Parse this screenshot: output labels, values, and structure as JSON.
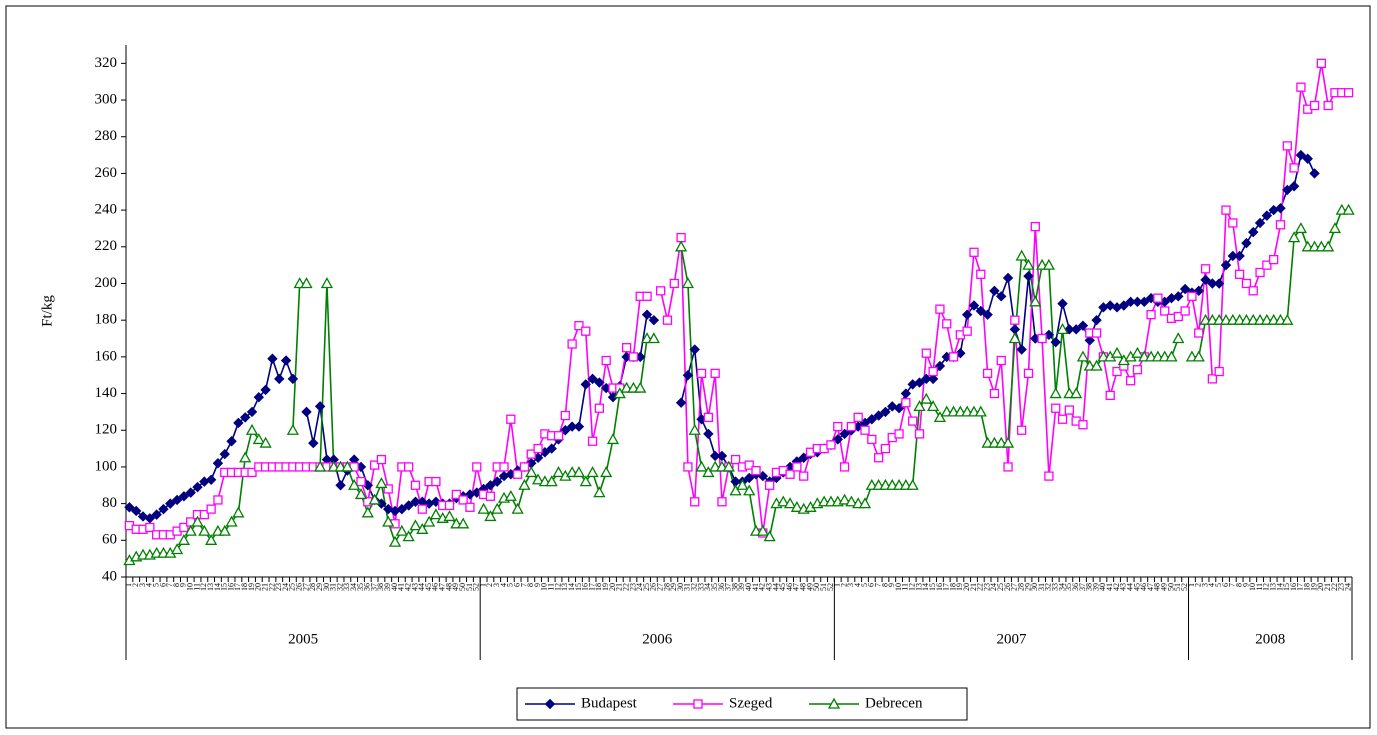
{
  "chart_data": {
    "type": "line",
    "y_label": "Ft/kg",
    "category_groups": [
      {
        "label": "2005",
        "categories": [
          "1",
          "2",
          "3",
          "4",
          "5",
          "6",
          "7",
          "8",
          "9",
          "10",
          "11",
          "12",
          "13",
          "14",
          "15",
          "16",
          "17",
          "18",
          "19",
          "20",
          "21",
          "22",
          "23",
          "24",
          "25",
          "26",
          "27",
          "28",
          "29",
          "30",
          "31",
          "32",
          "33",
          "34",
          "35",
          "36",
          "37",
          "38",
          "39",
          "40",
          "41",
          "42",
          "43",
          "44",
          "45",
          "46",
          "47",
          "48",
          "49",
          "50",
          "51",
          "52"
        ]
      },
      {
        "label": "2006",
        "categories": [
          "1",
          "2",
          "3",
          "4",
          "5",
          "6",
          "7",
          "8",
          "9",
          "10",
          "11",
          "12",
          "13",
          "14",
          "15",
          "16",
          "17",
          "18",
          "19",
          "20",
          "21",
          "22",
          "23",
          "24",
          "25",
          "26",
          "27",
          "28",
          "29",
          "30",
          "31",
          "32",
          "33",
          "34",
          "35",
          "36",
          "37",
          "38",
          "39",
          "40",
          "41",
          "42",
          "43",
          "44",
          "45",
          "46",
          "47",
          "48",
          "49",
          "50",
          "51",
          "52"
        ]
      },
      {
        "label": "2007",
        "categories": [
          "1",
          "2",
          "3",
          "4",
          "5",
          "6",
          "7",
          "8",
          "9",
          "10",
          "11",
          "12",
          "13",
          "14",
          "15",
          "16",
          "17",
          "18",
          "19",
          "20",
          "21",
          "22",
          "23",
          "24",
          "25",
          "26",
          "27",
          "28",
          "29",
          "30",
          "31",
          "32",
          "33",
          "34",
          "35",
          "36",
          "37",
          "38",
          "39",
          "40",
          "41",
          "42",
          "43",
          "44",
          "45",
          "46",
          "47",
          "48",
          "49",
          "50",
          "51",
          "52"
        ]
      },
      {
        "label": "2008",
        "categories": [
          "1",
          "2",
          "3",
          "4",
          "5",
          "6",
          "7",
          "8",
          "9",
          "10",
          "11",
          "12",
          "13",
          "14",
          "15",
          "16",
          "17",
          "18",
          "19",
          "20",
          "21",
          "22",
          "23",
          "24"
        ]
      }
    ],
    "series": [
      {
        "name": "Budapest",
        "color": "#000080",
        "marker": "diamond",
        "values": [
          78,
          76,
          73,
          72,
          74,
          77,
          80,
          82,
          84,
          86,
          89,
          92,
          93,
          102,
          107,
          114,
          124,
          127,
          130,
          138,
          142,
          159,
          148,
          158,
          148,
          null,
          130,
          113,
          133,
          104,
          104,
          90,
          98,
          104,
          100,
          90,
          82,
          80,
          77,
          76,
          77,
          79,
          81,
          81,
          80,
          81,
          80,
          80,
          83,
          84,
          85,
          86,
          88,
          90,
          92,
          95,
          96,
          98,
          100,
          102,
          105,
          108,
          110,
          115,
          120,
          122,
          122,
          145,
          148,
          146,
          143,
          138,
          144,
          160,
          160,
          160,
          183,
          180,
          null,
          null,
          null,
          135,
          150,
          164,
          126,
          118,
          106,
          106,
          100,
          92,
          92,
          94,
          96,
          95,
          92,
          94,
          97,
          100,
          103,
          105,
          107,
          108,
          110,
          112,
          115,
          118,
          120,
          122,
          124,
          126,
          128,
          130,
          133,
          132,
          140,
          145,
          146,
          148,
          148,
          155,
          160,
          160,
          162,
          183,
          188,
          185,
          183,
          196,
          193,
          203,
          175,
          164,
          204,
          170,
          170,
          172,
          168,
          189,
          175,
          175,
          177,
          169,
          180,
          187,
          188,
          187,
          188,
          190,
          190,
          190,
          192,
          190,
          190,
          192,
          193,
          197,
          195,
          196,
          202,
          200,
          200,
          210,
          215,
          215,
          222,
          228,
          233,
          237,
          240,
          241,
          251,
          253,
          270,
          268,
          260,
          null,
          null,
          null,
          null,
          null
        ]
      },
      {
        "name": "Szeged",
        "color": "#ff00ff",
        "marker": "square",
        "values": [
          68,
          66,
          66,
          67,
          63,
          63,
          63,
          65,
          67,
          70,
          74,
          74,
          77,
          82,
          97,
          97,
          97,
          97,
          97,
          100,
          100,
          100,
          100,
          100,
          100,
          100,
          100,
          100,
          100,
          100,
          100,
          100,
          100,
          100,
          92,
          81,
          101,
          104,
          88,
          69,
          100,
          100,
          90,
          77,
          92,
          92,
          79,
          79,
          85,
          82,
          78,
          100,
          85,
          84,
          100,
          100,
          126,
          96,
          100,
          107,
          110,
          118,
          117,
          117,
          128,
          167,
          177,
          174,
          114,
          132,
          158,
          143,
          143,
          165,
          160,
          193,
          193,
          null,
          196,
          180,
          200,
          225,
          100,
          81,
          151,
          127,
          151,
          81,
          100,
          104,
          100,
          101,
          98,
          64,
          90,
          97,
          98,
          96,
          100,
          95,
          108,
          110,
          110,
          112,
          122,
          100,
          122,
          127,
          120,
          115,
          105,
          110,
          116,
          118,
          135,
          125,
          118,
          162,
          152,
          186,
          178,
          160,
          172,
          174,
          217,
          205,
          151,
          140,
          158,
          100,
          180,
          120,
          151,
          231,
          170,
          95,
          132,
          126,
          131,
          125,
          123,
          173,
          173,
          160,
          139,
          152,
          155,
          147,
          153,
          160,
          183,
          192,
          185,
          181,
          182,
          185,
          193,
          173,
          208,
          148,
          152,
          240,
          233,
          205,
          200,
          196,
          206,
          210,
          213,
          232,
          275,
          263,
          307,
          295,
          297,
          320,
          297,
          304,
          304,
          304
        ]
      },
      {
        "name": "Debrecen",
        "color": "#008000",
        "marker": "triangle",
        "values": [
          49,
          51,
          52,
          52,
          53,
          53,
          53,
          55,
          60,
          65,
          70,
          65,
          60,
          65,
          65,
          70,
          75,
          105,
          120,
          115,
          113,
          null,
          null,
          null,
          120,
          200,
          200,
          null,
          100,
          200,
          100,
          100,
          100,
          90,
          85,
          75,
          82,
          91,
          70,
          59,
          65,
          62,
          68,
          66,
          70,
          74,
          72,
          73,
          69,
          69,
          null,
          null,
          77,
          73,
          77,
          83,
          84,
          77,
          90,
          97,
          93,
          92,
          92,
          97,
          95,
          97,
          97,
          92,
          97,
          86,
          97,
          115,
          140,
          143,
          143,
          143,
          170,
          170,
          null,
          null,
          null,
          220,
          200,
          120,
          100,
          97,
          100,
          100,
          100,
          87,
          90,
          87,
          65,
          65,
          62,
          80,
          81,
          80,
          78,
          77,
          78,
          80,
          81,
          81,
          81,
          82,
          81,
          80,
          80,
          90,
          90,
          90,
          90,
          90,
          90,
          90,
          133,
          137,
          133,
          127,
          130,
          130,
          130,
          130,
          130,
          130,
          113,
          113,
          113,
          113,
          170,
          215,
          210,
          190,
          210,
          210,
          140,
          175,
          140,
          140,
          160,
          155,
          155,
          160,
          160,
          162,
          158,
          160,
          162,
          160,
          160,
          160,
          160,
          160,
          170,
          null,
          160,
          160,
          180,
          180,
          180,
          180,
          180,
          180,
          180,
          180,
          180,
          180,
          180,
          180,
          180,
          225,
          230,
          220,
          220,
          220,
          220,
          230,
          240,
          240
        ]
      }
    ],
    "ylim": [
      40,
      330
    ],
    "yticks": [
      40,
      60,
      80,
      100,
      120,
      140,
      160,
      180,
      200,
      220,
      240,
      260,
      280,
      300,
      320
    ],
    "legend": "bottom"
  }
}
